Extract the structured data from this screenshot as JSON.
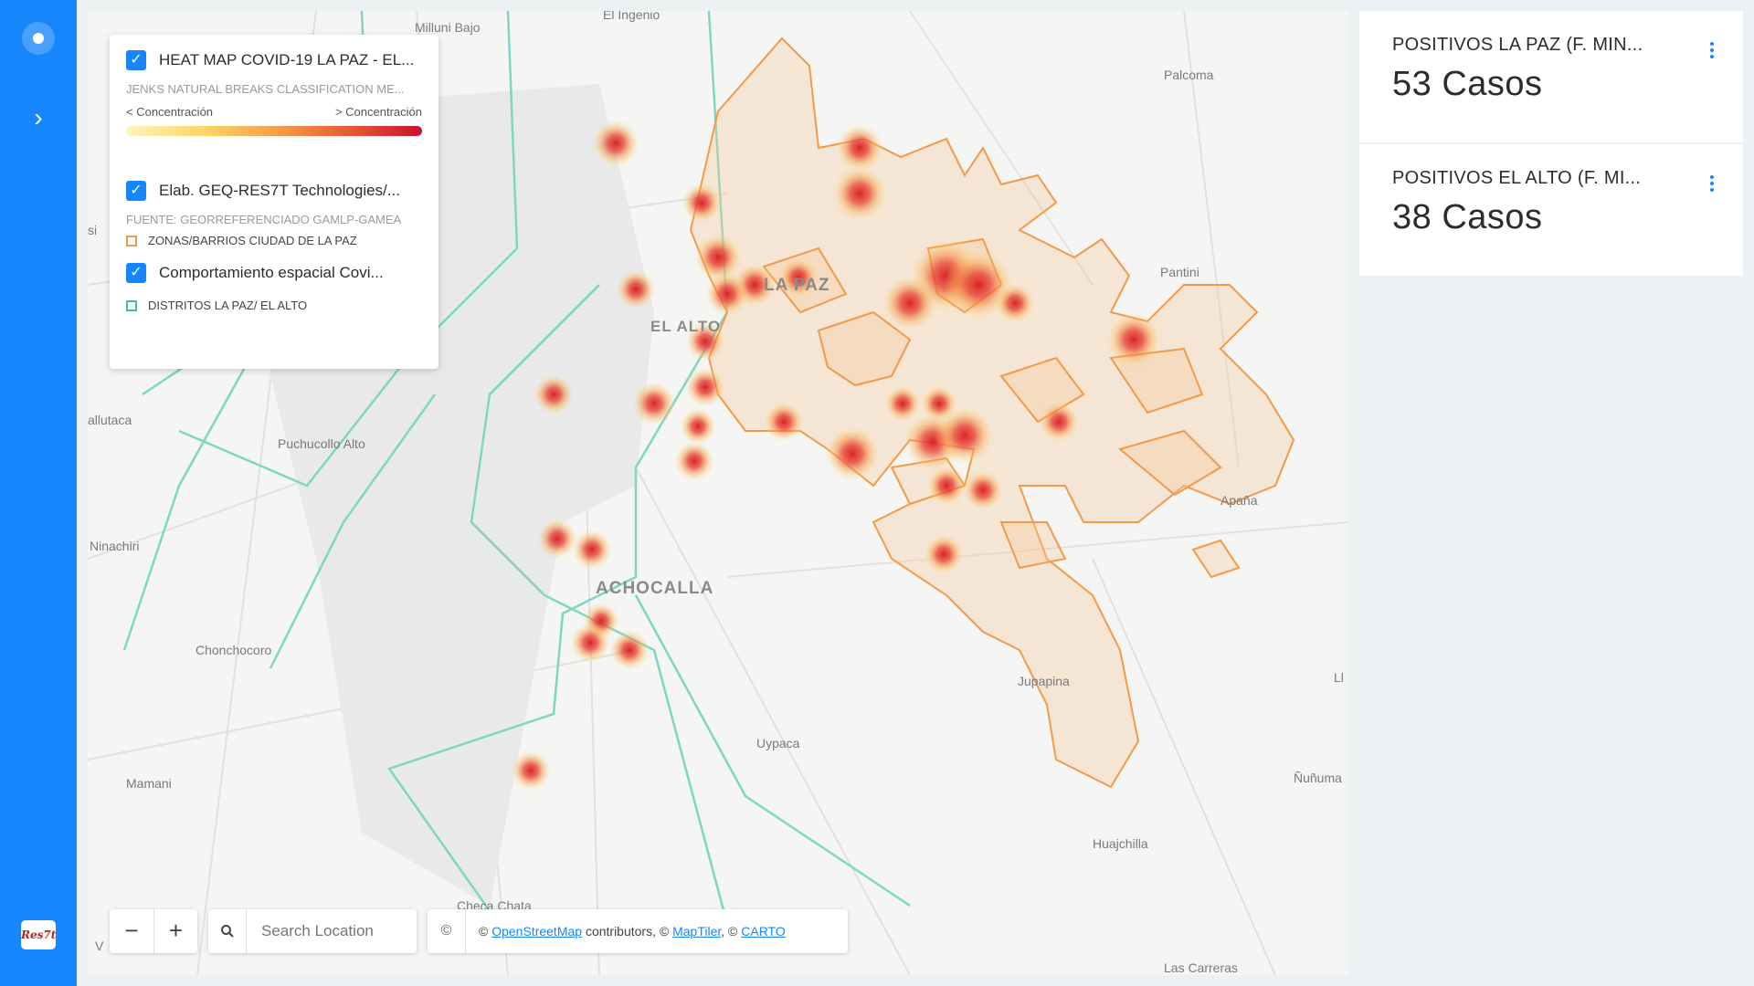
{
  "legend": {
    "layer1_title": "HEAT MAP COVID-19 LA PAZ - EL...",
    "layer1_method": "JENKS NATURAL BREAKS CLASSIFICATION ME...",
    "conc_low": "< Concentración",
    "conc_high": "> Concentración",
    "layer2_title": "Elab. GEQ-RES7T Technologies/...",
    "layer2_source": "FUENTE: GEORREFERENCIADO GAMLP-GAMEA",
    "layer2_item": "ZONAS/BARRIOS CIUDAD DE LA PAZ",
    "layer3_title": "Comportamiento espacial Covi...",
    "layer3_item": "DISTRITOS LA PAZ/ EL ALTO",
    "colors": {
      "zones": "#f29a4a",
      "districts": "#3fbfa4"
    }
  },
  "map": {
    "places": {
      "milluni": "Milluni Bajo",
      "ingenio": "El Ingenio",
      "palcoma": "Palcoma",
      "pantini": "Pantini",
      "lapaz": "LA PAZ",
      "elalto": "EL ALTO",
      "allutaca": "allutaca",
      "puchucollo": "Puchucollo Alto",
      "ninachiri": "Ninachiri",
      "achocalla": "ACHOCALLA",
      "chonchocoro": "Chonchocoro",
      "apana": "Apaña",
      "jupapina": "Jupapina",
      "uypaca": "Uypaca",
      "mamani": "Mamani",
      "nunuma": "Ñuñuma",
      "huajchilla": "Huajchilla",
      "checa": "Checa Chata",
      "carreras": "Las Carreras",
      "si": "si",
      "ll": "Ll",
      "v": "V"
    }
  },
  "controls": {
    "zoom_out": "−",
    "zoom_in": "+",
    "search_placeholder": "Search Location",
    "copyright": "©",
    "attr_prefix": "© ",
    "osm": "OpenStreetMap",
    "attr_mid": " contributors, © ",
    "maptiler": "MapTiler",
    "attr_sep": ", © ",
    "carto": "CARTO"
  },
  "widgets": [
    {
      "title": "POSITIVOS LA PAZ (F. MIN...",
      "value": "53 Casos"
    },
    {
      "title": "POSITIVOS EL ALTO (F. MI...",
      "value": "38 Casos"
    }
  ],
  "rail": {
    "logo": "Res7t"
  }
}
